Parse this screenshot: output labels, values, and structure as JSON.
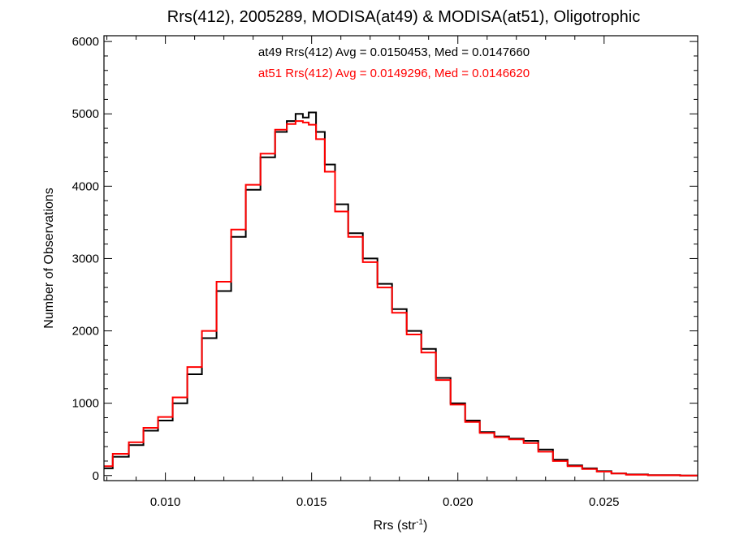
{
  "chart_data": {
    "type": "line",
    "title": "Rrs(412), 2005289, MODISA(at49) & MODISA(at51), Oligotrophic",
    "xlabel": "Rrs (str",
    "xlabel_sup": "-1",
    "xlabel_close": ")",
    "ylabel": "Number of Observations",
    "xlim": [
      0.0079,
      0.0282
    ],
    "ylim": [
      -70,
      6080
    ],
    "xticks": [
      {
        "v": 0.01,
        "label": "0.010"
      },
      {
        "v": 0.015,
        "label": "0.015"
      },
      {
        "v": 0.02,
        "label": "0.020"
      },
      {
        "v": 0.025,
        "label": "0.025"
      }
    ],
    "yticks": [
      {
        "v": 0,
        "label": "0"
      },
      {
        "v": 1000,
        "label": "1000"
      },
      {
        "v": 2000,
        "label": "2000"
      },
      {
        "v": 3000,
        "label": "3000"
      },
      {
        "v": 4000,
        "label": "4000"
      },
      {
        "v": 5000,
        "label": "5000"
      },
      {
        "v": 6000,
        "label": "6000"
      }
    ],
    "series": [
      {
        "name": "at49",
        "color": "#000000",
        "annotation": "at49 Rrs(412) Avg = 0.0150453, Med = 0.0147660",
        "x": [
          0.0079,
          0.0085,
          0.009,
          0.0095,
          0.01,
          0.0105,
          0.011,
          0.0115,
          0.012,
          0.0125,
          0.013,
          0.0135,
          0.014,
          0.0143,
          0.0146,
          0.0148,
          0.015,
          0.0153,
          0.0156,
          0.016,
          0.0165,
          0.017,
          0.0175,
          0.018,
          0.0185,
          0.019,
          0.0195,
          0.02,
          0.0205,
          0.021,
          0.0215,
          0.022,
          0.0225,
          0.023,
          0.0235,
          0.024,
          0.0245,
          0.025,
          0.0255,
          0.026,
          0.027,
          0.0282
        ],
        "y": [
          100,
          260,
          420,
          620,
          760,
          1000,
          1400,
          1900,
          2550,
          3300,
          3950,
          4400,
          4750,
          4900,
          5000,
          4950,
          5020,
          4750,
          4300,
          3750,
          3350,
          3000,
          2650,
          2300,
          2000,
          1750,
          1350,
          1000,
          760,
          600,
          540,
          510,
          480,
          360,
          220,
          140,
          100,
          60,
          30,
          15,
          5,
          0
        ]
      },
      {
        "name": "at51",
        "color": "#ff0000",
        "annotation": "at51 Rrs(412) Avg = 0.0149296, Med = 0.0146620",
        "x": [
          0.0079,
          0.0085,
          0.009,
          0.0095,
          0.01,
          0.0105,
          0.011,
          0.0115,
          0.012,
          0.0125,
          0.013,
          0.0135,
          0.014,
          0.0143,
          0.0146,
          0.0148,
          0.015,
          0.0153,
          0.0156,
          0.016,
          0.0165,
          0.017,
          0.0175,
          0.018,
          0.0185,
          0.019,
          0.0195,
          0.02,
          0.0205,
          0.021,
          0.0215,
          0.022,
          0.0225,
          0.023,
          0.0235,
          0.024,
          0.0245,
          0.025,
          0.0255,
          0.026,
          0.027,
          0.0282
        ],
        "y": [
          130,
          300,
          460,
          660,
          810,
          1080,
          1500,
          2000,
          2680,
          3400,
          4020,
          4450,
          4780,
          4860,
          4900,
          4880,
          4850,
          4650,
          4200,
          3650,
          3300,
          2950,
          2600,
          2250,
          1950,
          1700,
          1320,
          980,
          740,
          590,
          530,
          500,
          450,
          330,
          200,
          130,
          90,
          55,
          28,
          12,
          4,
          0
        ]
      }
    ]
  }
}
